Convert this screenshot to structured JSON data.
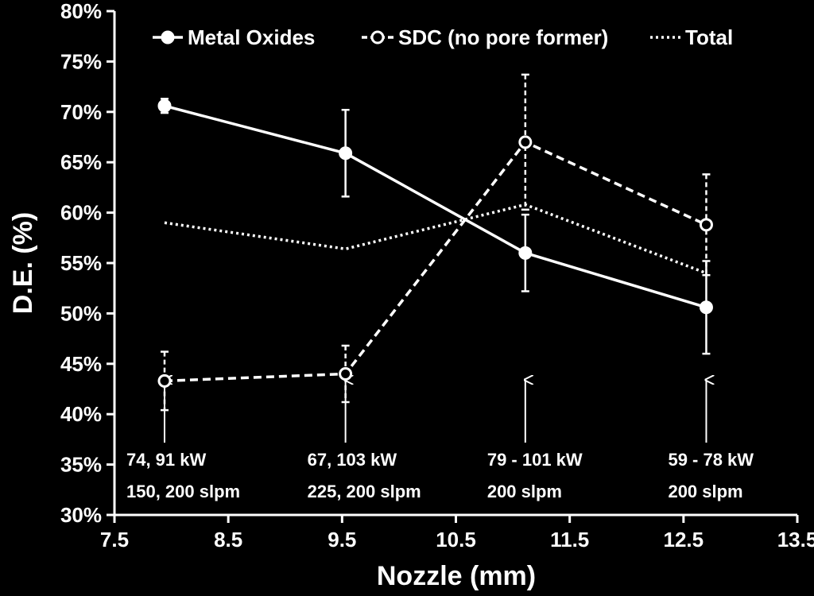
{
  "chart_data": {
    "type": "line",
    "xlabel": "Nozzle (mm)",
    "ylabel": "D.E. (%)",
    "xlim": [
      7.5,
      13.5
    ],
    "ylim": [
      30,
      80
    ],
    "xticks": [
      "7.5",
      "8.5",
      "9.5",
      "10.5",
      "11.5",
      "12.5",
      "13.5"
    ],
    "yticks": [
      "30%",
      "35%",
      "40%",
      "45%",
      "50%",
      "55%",
      "60%",
      "65%",
      "70%",
      "75%",
      "80%"
    ],
    "grid": false,
    "legend_position": "top",
    "series": [
      {
        "name": "Metal Oxides",
        "style": "solid",
        "marker": "filled-circle",
        "color": "#ffffff",
        "x": [
          7.94,
          9.53,
          11.11,
          12.7
        ],
        "y": [
          70.6,
          65.9,
          56.0,
          50.6
        ],
        "err": [
          0.7,
          4.3,
          3.8,
          4.6
        ]
      },
      {
        "name": "SDC (no pore former)",
        "style": "dashed",
        "marker": "open-circle",
        "color": "#ffffff",
        "x": [
          7.94,
          9.53,
          11.11,
          12.7
        ],
        "y": [
          43.3,
          44.0,
          67.0,
          58.8
        ],
        "err": [
          2.9,
          2.8,
          6.7,
          5.0
        ]
      },
      {
        "name": "Total",
        "style": "dotted",
        "marker": "none",
        "color": "#ffffff",
        "x": [
          7.94,
          9.53,
          11.11,
          12.7
        ],
        "y": [
          59.0,
          56.4,
          60.8,
          54.0
        ]
      }
    ],
    "annotations": [
      {
        "x": 7.94,
        "line1": "74, 91 kW",
        "line2": "150, 200 slpm"
      },
      {
        "x": 9.53,
        "line1": "67, 103 kW",
        "line2": "225, 200 slpm"
      },
      {
        "x": 11.11,
        "line1": "79 - 101 kW",
        "line2": "200 slpm"
      },
      {
        "x": 12.7,
        "line1": "59 - 78 kW",
        "line2": "200 slpm"
      }
    ]
  }
}
